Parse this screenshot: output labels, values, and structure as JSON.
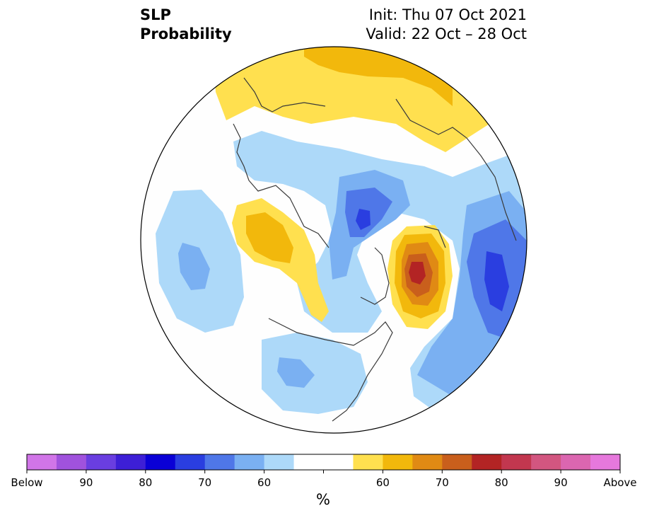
{
  "title": {
    "variable": "SLP",
    "product": "Probability",
    "init": "Init: Thu 07 Oct 2021",
    "valid": "Valid: 22 Oct – 28 Oct"
  },
  "colorbar": {
    "unit": "%",
    "colors": [
      "#d175e8",
      "#a052dd",
      "#6a3ee0",
      "#3d1fd6",
      "#0a00d6",
      "#2a3ee0",
      "#4f77e8",
      "#7ab0f2",
      "#add9f9",
      "#ffffff",
      "#ffffff",
      "#ffe04f",
      "#f2b80c",
      "#e08a14",
      "#c95f1c",
      "#b32424",
      "#c2374f",
      "#d25680",
      "#db66b0",
      "#e678dc"
    ],
    "labels": [
      "Below",
      "90",
      "80",
      "70",
      "60",
      "60",
      "70",
      "80",
      "90",
      "Above"
    ]
  },
  "legend_categories": {
    "below_normal": "Below",
    "above_normal": "Above"
  }
}
